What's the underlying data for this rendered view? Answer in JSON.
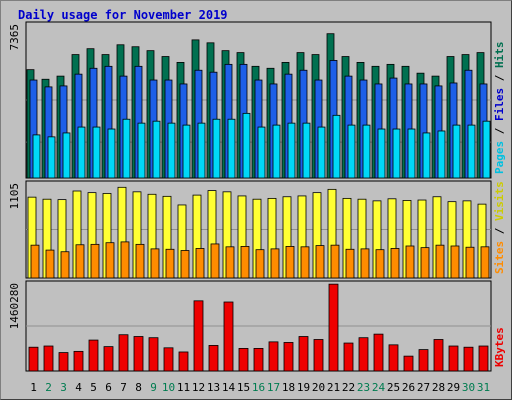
{
  "chart_data": {
    "type": "bar",
    "title": "Daily usage for November 2019",
    "categories": [
      "1",
      "2",
      "3",
      "4",
      "5",
      "6",
      "7",
      "8",
      "9",
      "10",
      "11",
      "12",
      "13",
      "14",
      "15",
      "16",
      "17",
      "18",
      "19",
      "20",
      "21",
      "22",
      "23",
      "24",
      "25",
      "26",
      "27",
      "28",
      "29",
      "30",
      "31"
    ],
    "weekend_days": [
      "2",
      "3",
      "9",
      "10",
      "16",
      "17",
      "23",
      "24",
      "30",
      "31"
    ],
    "colors": {
      "title": "#0000cc",
      "hits": "#007050",
      "files": "#1e5fe8",
      "pages": "#00d8f8",
      "visits": "#ffff33",
      "sites": "#ff8c00",
      "kbytes": "#ee0000",
      "weekday_label": "#000000",
      "weekend_label": "#007c50",
      "panel_bg": "#c0c0c0",
      "grid": "#909090"
    },
    "panels": [
      {
        "name": "traffic",
        "ymax_label": "7365",
        "ymax": 7365,
        "right_labels": [
          {
            "text": "Pages",
            "color": "#00c0e0"
          },
          {
            "text": " / ",
            "color": "#000000"
          },
          {
            "text": "Files",
            "color": "#0000cc"
          },
          {
            "text": " / ",
            "color": "#000000"
          },
          {
            "text": "Hits",
            "color": "#007050"
          }
        ],
        "series": [
          {
            "name": "Hits",
            "values": [
              5530,
              5040,
              5200,
              6300,
              6600,
              6300,
              6800,
              6700,
              6500,
              6200,
              5900,
              7050,
              6900,
              6500,
              6400,
              5700,
              5600,
              5900,
              6400,
              6300,
              7365,
              6200,
              5900,
              5700,
              5800,
              5700,
              5350,
              5200,
              6200,
              6300,
              6400
            ]
          },
          {
            "name": "Files",
            "values": [
              5000,
              4650,
              4700,
              5300,
              5600,
              5700,
              5200,
              5700,
              5000,
              5000,
              4800,
              5500,
              5400,
              5800,
              5800,
              5000,
              4800,
              5300,
              5500,
              5000,
              6000,
              5200,
              5000,
              4800,
              5100,
              4800,
              4800,
              4700,
              4850,
              5500,
              4800
            ]
          },
          {
            "name": "Pages",
            "values": [
              2200,
              2100,
              2300,
              2600,
              2600,
              2500,
              3000,
              2800,
              2900,
              2800,
              2700,
              2800,
              3000,
              3000,
              3300,
              2600,
              2700,
              2800,
              2800,
              2600,
              3200,
              2700,
              2700,
              2500,
              2500,
              2500,
              2300,
              2400,
              2700,
              2700,
              2900
            ]
          }
        ]
      },
      {
        "name": "visits",
        "ymax_label": "1105",
        "ymax": 1105,
        "right_labels": [
          {
            "text": "Sites",
            "color": "#ff8c00"
          },
          {
            "text": " / ",
            "color": "#000000"
          },
          {
            "text": "Visits",
            "color": "#cccc00"
          }
        ],
        "series": [
          {
            "name": "Visits",
            "values": [
              985,
              960,
              955,
              1060,
              1040,
              1030,
              1105,
              1050,
              1020,
              995,
              890,
              1010,
              1065,
              1050,
              1000,
              960,
              970,
              990,
              1000,
              1040,
              1080,
              970,
              960,
              940,
              965,
              945,
              950,
              990,
              930,
              940,
              900
            ]
          },
          {
            "name": "Sites",
            "values": [
              400,
              340,
              320,
              405,
              410,
              430,
              440,
              410,
              355,
              350,
              335,
              360,
              415,
              380,
              385,
              345,
              355,
              385,
              380,
              395,
              400,
              350,
              355,
              345,
              360,
              390,
              370,
              400,
              390,
              375,
              380
            ]
          }
        ]
      },
      {
        "name": "kbytes",
        "ymax_label": "1460280",
        "ymax": 1460280,
        "right_labels": [
          {
            "text": "KBytes",
            "color": "#ee0000"
          }
        ],
        "series": [
          {
            "name": "KBytes",
            "values": [
              400000,
              420000,
              310000,
              330000,
              520000,
              410000,
              610000,
              580000,
              560000,
              390000,
              320000,
              1180000,
              430000,
              1160000,
              380000,
              380000,
              490000,
              480000,
              580000,
              530000,
              1460280,
              470000,
              560000,
              620000,
              440000,
              250000,
              360000,
              530000,
              420000,
              400000,
              420000
            ]
          }
        ]
      }
    ]
  }
}
